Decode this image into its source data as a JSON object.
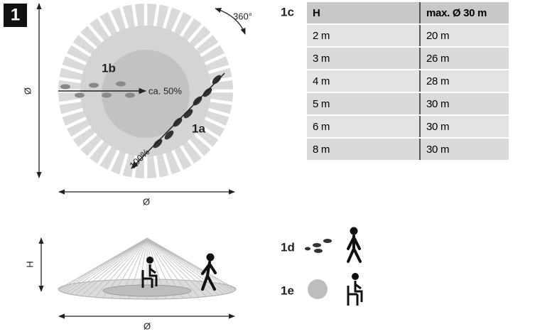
{
  "badge": "1",
  "top_view": {
    "rotation": "360°",
    "label_b": "1b",
    "half": "ca. 50%",
    "label_a": "1a",
    "full": "100%",
    "diameter_v": "Ø",
    "diameter_h": "Ø"
  },
  "table": {
    "label": "1c",
    "header": [
      "H",
      "max. Ø 30 m"
    ],
    "rows": [
      [
        "2 m",
        "20 m"
      ],
      [
        "3 m",
        "26 m"
      ],
      [
        "4 m",
        "28 m"
      ],
      [
        "5 m",
        "30 m"
      ],
      [
        "6 m",
        "30 m"
      ],
      [
        "8 m",
        "30 m"
      ]
    ]
  },
  "side_view": {
    "height": "H",
    "diameter": "Ø"
  },
  "legend": {
    "walking": "1d",
    "seated": "1e"
  }
}
